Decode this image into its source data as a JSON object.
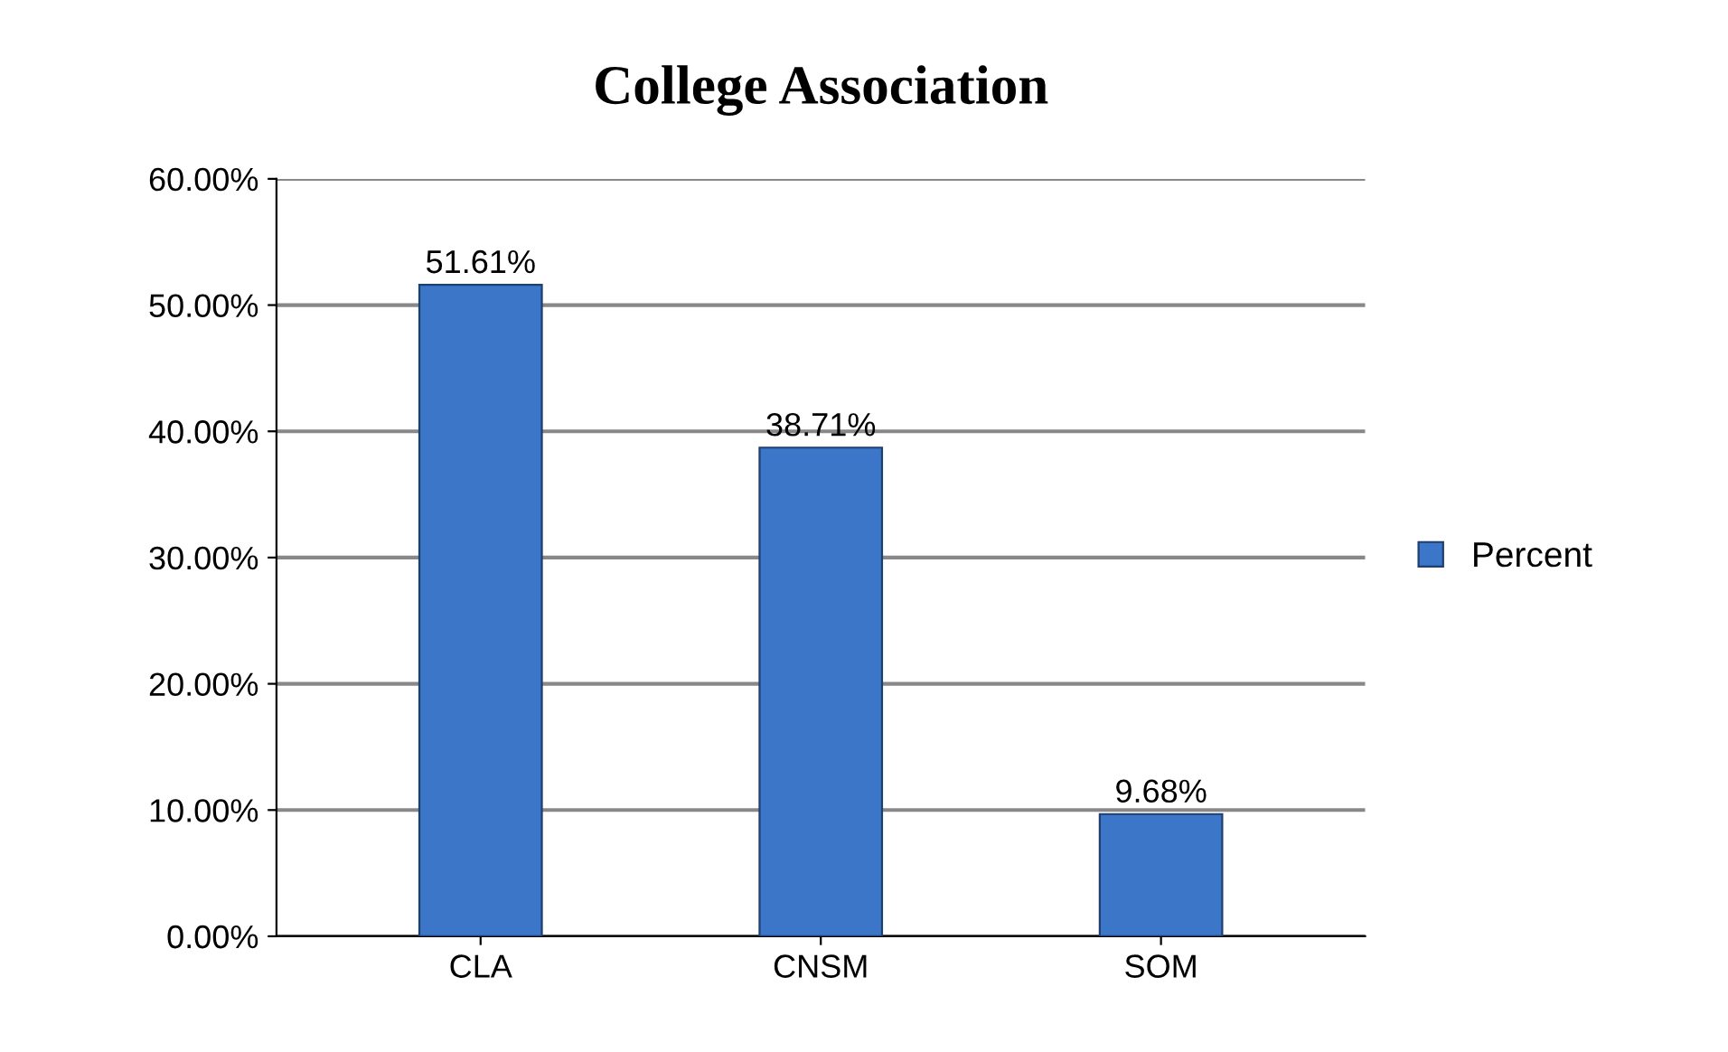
{
  "chart_data": {
    "type": "bar",
    "title": "College Association",
    "categories": [
      "CLA",
      "CNSM",
      "SOM"
    ],
    "series": [
      {
        "name": "Percent",
        "color": "#3b76c9",
        "values": [
          51.61,
          38.71,
          9.68
        ]
      }
    ],
    "value_labels": [
      "51.61%",
      "38.71%",
      "9.68%"
    ],
    "ylim": [
      0,
      60
    ],
    "yticks": [
      {
        "value": 0,
        "label": "0.00%"
      },
      {
        "value": 10,
        "label": "10.00%"
      },
      {
        "value": 20,
        "label": "20.00%"
      },
      {
        "value": 30,
        "label": "30.00%"
      },
      {
        "value": 40,
        "label": "40.00%"
      },
      {
        "value": 50,
        "label": "50.00%"
      },
      {
        "value": 60,
        "label": "60.00%"
      }
    ],
    "grid": "y",
    "legend": "right"
  }
}
